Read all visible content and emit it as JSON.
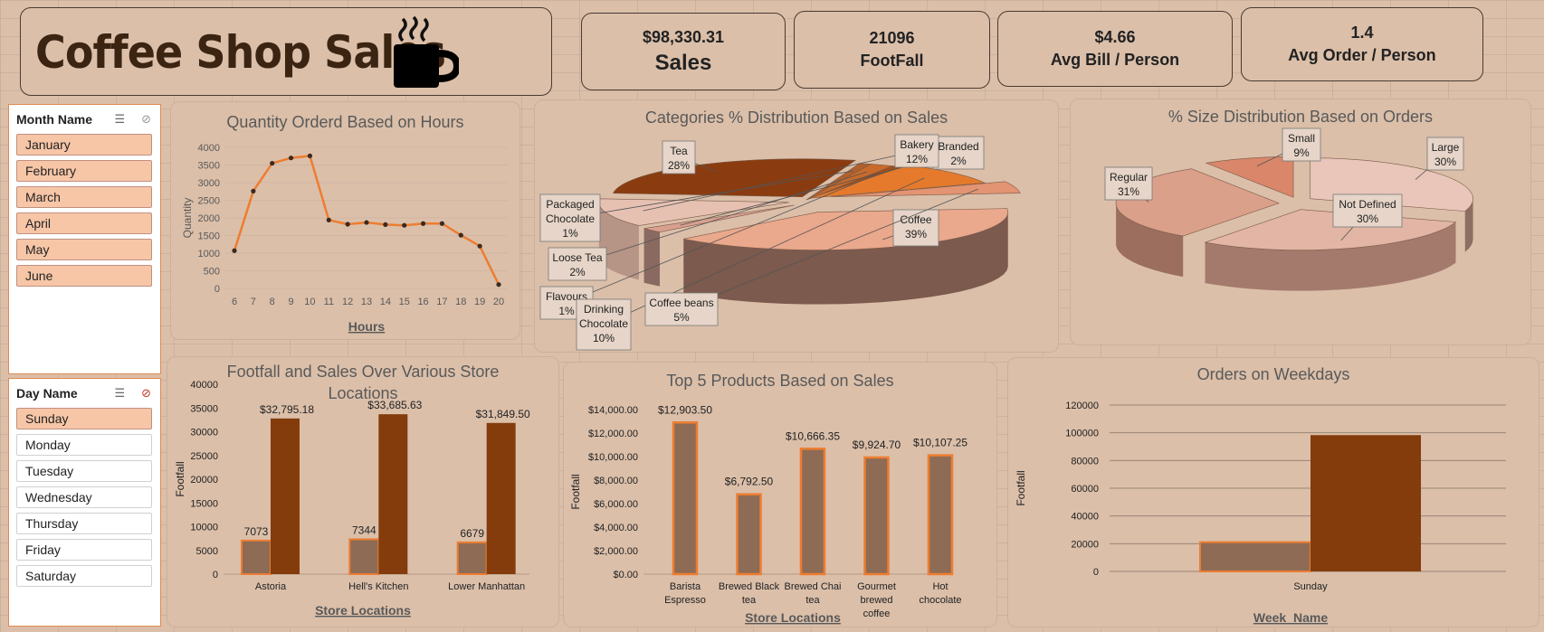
{
  "title": "Coffee Shop Sales",
  "kpis": [
    {
      "value": "$98,330.31",
      "label": "Sales"
    },
    {
      "value": "21096",
      "label": "FootFall"
    },
    {
      "value": "$4.66",
      "label": "Avg Bill / Person"
    },
    {
      "value": "1.4",
      "label": "Avg Order / Person"
    }
  ],
  "slicers": {
    "month": {
      "title": "Month Name",
      "items": [
        "January",
        "February",
        "March",
        "April",
        "May",
        "June"
      ],
      "selected": [
        0,
        1,
        2,
        3,
        4,
        5
      ]
    },
    "day": {
      "title": "Day Name",
      "items": [
        "Sunday",
        "Monday",
        "Tuesday",
        "Wednesday",
        "Thursday",
        "Friday",
        "Saturday"
      ],
      "selected": [
        0
      ]
    }
  },
  "colors": {
    "line": "#ed7d31",
    "bar_light": "#8e6b54",
    "bar_dark": "#843c0c",
    "bar_outline": "#ed7d31",
    "text": "#595959"
  },
  "chart_data": [
    {
      "id": "hours",
      "type": "line",
      "title": "Quantity Orderd Based on Hours",
      "xlabel": "Hours",
      "ylabel": "Quantity",
      "x": [
        6,
        7,
        8,
        9,
        10,
        11,
        12,
        13,
        14,
        15,
        16,
        17,
        18,
        19,
        20
      ],
      "values": [
        1070,
        2760,
        3550,
        3700,
        3760,
        1940,
        1820,
        1870,
        1810,
        1790,
        1840,
        1840,
        1510,
        1200,
        110
      ],
      "ylim": [
        0,
        4000
      ],
      "yticks": [
        0,
        500,
        1000,
        1500,
        2000,
        2500,
        3000,
        3500,
        4000
      ],
      "grid": true
    },
    {
      "id": "categories",
      "type": "pie",
      "title": "Categories % Distribution Based on Sales",
      "labels": [
        "Coffee",
        "Branded",
        "Bakery",
        "Tea",
        "Packaged Chocolate",
        "Loose Tea",
        "Flavours",
        "Drinking Chocolate",
        "Coffee beans"
      ],
      "values": [
        39,
        2,
        12,
        28,
        1,
        2,
        1,
        10,
        5
      ],
      "data_labels": [
        "39%",
        "2%",
        "12%",
        "28%",
        "1%",
        "2%",
        "1%",
        "10%",
        "5%"
      ]
    },
    {
      "id": "sizes",
      "type": "pie",
      "title": "% Size Distribution Based on Orders",
      "labels": [
        "Large",
        "Not Defined",
        "Regular",
        "Small"
      ],
      "values": [
        30,
        30,
        31,
        9
      ],
      "data_labels": [
        "30%",
        "30%",
        "31%",
        "9%"
      ]
    },
    {
      "id": "stores",
      "type": "bar",
      "title": "Footfall and Sales Over Various Store Locations",
      "xlabel": "Store Locations",
      "ylabel": "Footfall",
      "categories": [
        "Astoria",
        "Hell's Kitchen",
        "Lower Manhattan"
      ],
      "series": [
        {
          "values": [
            7073,
            7344,
            6679
          ],
          "labels": [
            "7073",
            "7344",
            "6679"
          ]
        },
        {
          "values": [
            32795.18,
            33685.63,
            31849.5
          ],
          "labels": [
            "$32,795.18",
            "$33,685.63",
            "$31,849.50"
          ]
        }
      ],
      "ylim": [
        0,
        40000
      ],
      "yticks": [
        "0",
        "5000",
        "10000",
        "15000",
        "20000",
        "25000",
        "30000",
        "35000",
        "40000"
      ]
    },
    {
      "id": "products",
      "type": "bar",
      "title": "Top 5 Products Based on Sales",
      "xlabel": "Store Locations",
      "ylabel": "Footfall",
      "categories": [
        [
          "Barista",
          "Espresso"
        ],
        [
          "Brewed Black",
          "tea"
        ],
        [
          "Brewed Chai",
          "tea"
        ],
        [
          "Gourmet",
          "brewed",
          "coffee"
        ],
        [
          "Hot",
          "chocolate"
        ]
      ],
      "values": [
        12903.5,
        6792.5,
        10666.35,
        9924.7,
        10107.25
      ],
      "data_labels": [
        "$12,903.50",
        "$6,792.50",
        "$10,666.35",
        "$9,924.70",
        "$10,107.25"
      ],
      "ylim": [
        0,
        14000
      ],
      "yticks": [
        "$0.00",
        "$2,000.00",
        "$4,000.00",
        "$6,000.00",
        "$8,000.00",
        "$10,000.00",
        "$12,000.00",
        "$14,000.00"
      ]
    },
    {
      "id": "weekdays",
      "type": "bar",
      "title": "Orders on Weekdays",
      "xlabel": "Week_Name",
      "ylabel": "Footfall",
      "categories": [
        "Sunday"
      ],
      "series": [
        {
          "values": [
            21096
          ]
        },
        {
          "values": [
            98330.31
          ]
        }
      ],
      "ylim": [
        0,
        120000
      ],
      "yticks": [
        "0",
        "20000",
        "40000",
        "60000",
        "80000",
        "100000",
        "120000"
      ],
      "grid": true
    }
  ]
}
